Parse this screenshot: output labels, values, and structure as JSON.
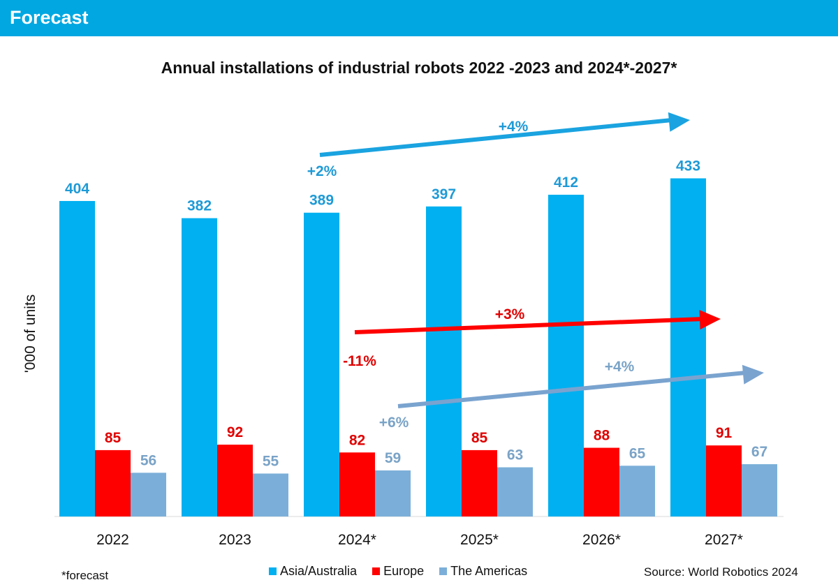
{
  "header": {
    "title": "Forecast"
  },
  "footnote": "*forecast",
  "source": "Source: World Robotics 2024",
  "colors": {
    "asia": "#00b0f0",
    "europe": "#ff0000",
    "americas": "#7bafd9",
    "header": "#00a7e1"
  },
  "chart_data": {
    "type": "bar",
    "title": "Annual installations of industrial robots 2022 -2023 and 2024*-2027*",
    "xlabel": "",
    "ylabel": "'000 of units",
    "categories": [
      "2022",
      "2023",
      "2024*",
      "2025*",
      "2026*",
      "2027*"
    ],
    "series": [
      {
        "name": "Asia/Australia",
        "values": [
          404,
          382,
          389,
          397,
          412,
          433
        ],
        "color": "#00b0f0",
        "label_color": "#1f9ad6"
      },
      {
        "name": "Europe",
        "values": [
          85,
          92,
          82,
          85,
          88,
          91
        ],
        "color": "#ff0000",
        "label_color": "#e00000"
      },
      {
        "name": "The Americas",
        "values": [
          56,
          55,
          59,
          63,
          65,
          67
        ],
        "color": "#7bafd9",
        "label_color": "#7aa3c7"
      }
    ],
    "ylim": [
      0,
      480
    ],
    "grid": false,
    "legend": "bottom",
    "annotations": [
      {
        "text": "+4%",
        "series": "Asia/Australia",
        "kind": "trend-arrow"
      },
      {
        "text": "+2%",
        "series": "Asia/Australia",
        "kind": "growth-label"
      },
      {
        "text": "+3%",
        "series": "Europe",
        "kind": "trend-arrow"
      },
      {
        "text": "-11%",
        "series": "Europe",
        "kind": "growth-label"
      },
      {
        "text": "+4%",
        "series": "The Americas",
        "kind": "trend-arrow"
      },
      {
        "text": "+6%",
        "series": "The Americas",
        "kind": "growth-label"
      }
    ]
  }
}
